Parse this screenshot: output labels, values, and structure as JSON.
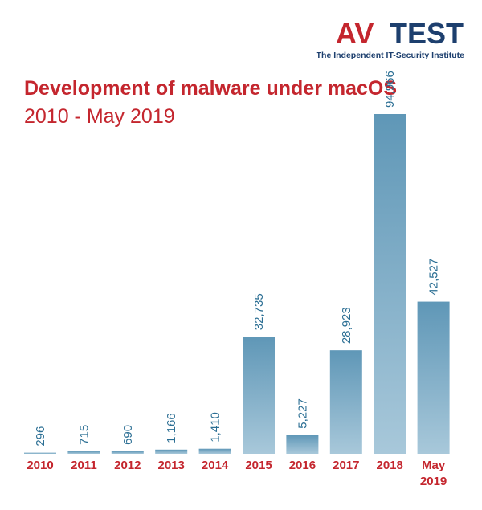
{
  "logo": {
    "mark": "AV",
    "name": "TEST",
    "tagline": "The Independent IT-Security Institute"
  },
  "chart_data": {
    "type": "bar",
    "title": "Development of malware under macOS",
    "subtitle": "2010 - May 2019",
    "categories": [
      "2010",
      "2011",
      "2012",
      "2013",
      "2014",
      "2015",
      "2016",
      "2017",
      "2018",
      "May 2019"
    ],
    "values": [
      296,
      715,
      690,
      1166,
      1410,
      32735,
      5227,
      28923,
      94966,
      42527
    ],
    "value_labels": [
      "296",
      "715",
      "690",
      "1,166",
      "1,410",
      "32,735",
      "5,227",
      "28,923",
      "94,966",
      "42,527"
    ],
    "color": "#7aa9c4"
  }
}
